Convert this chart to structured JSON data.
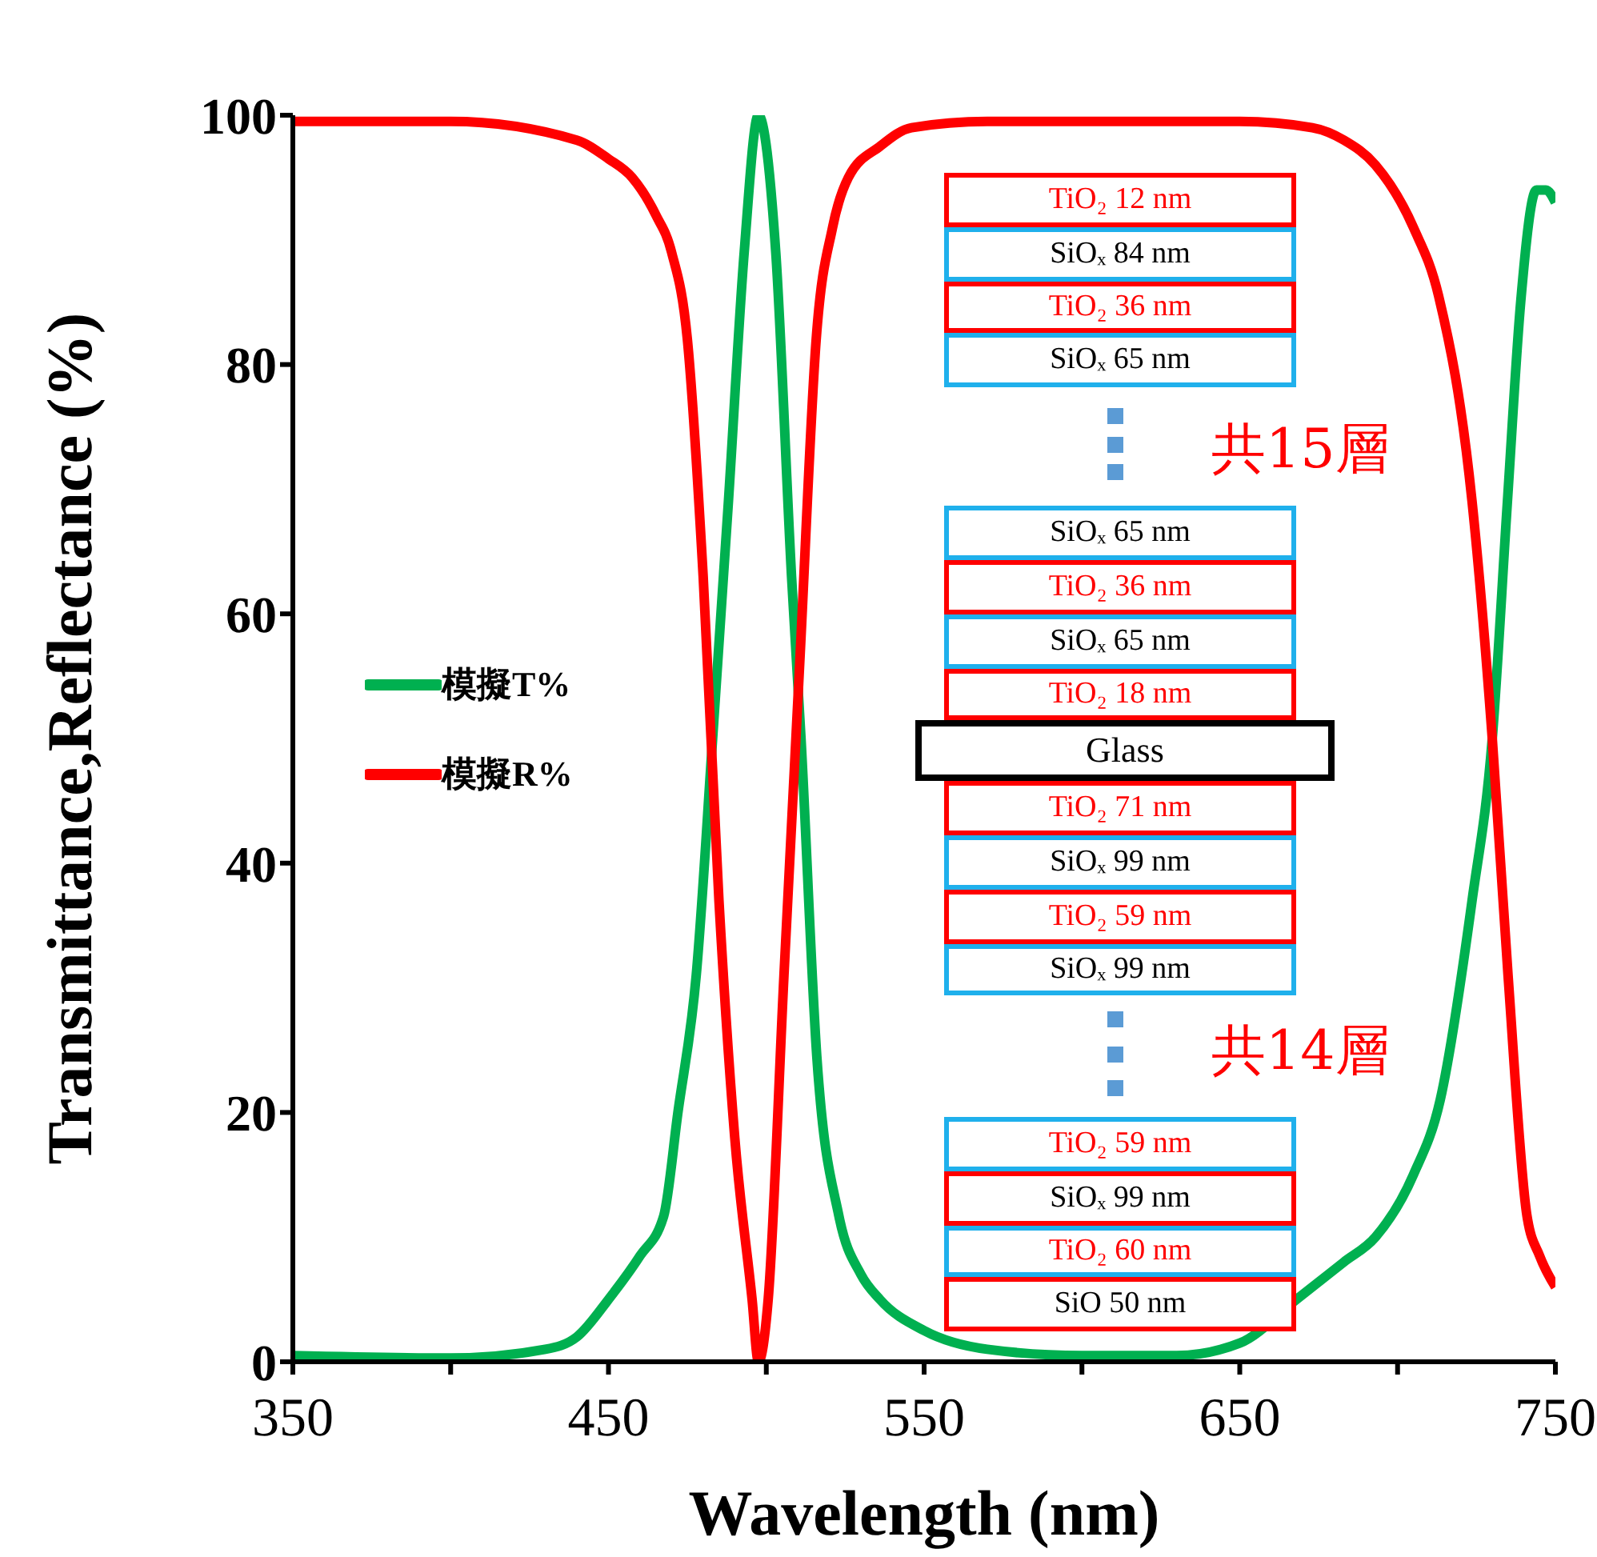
{
  "chart_data": {
    "type": "line",
    "xlabel": "Wavelength (nm)",
    "ylabel": "Transmittance,Reflectance (%)",
    "xlim": [
      350,
      750
    ],
    "xticks": [
      350,
      {
        "value": 400,
        "label": null
      },
      450,
      {
        "value": 500,
        "label": null
      },
      550,
      {
        "value": 600,
        "label": null
      },
      650,
      {
        "value": 700,
        "label": null
      },
      750
    ],
    "ylim": [
      0,
      100
    ],
    "yticks": [
      0,
      20,
      40,
      60,
      80,
      100
    ],
    "grid": false,
    "legend": "left",
    "marker": "none",
    "line_style": "solid",
    "series": [
      {
        "name": "模擬T%",
        "color": "#00b050",
        "x": [
          350,
          400,
          430,
          440,
          450,
          460,
          467.5,
          472,
          477.8,
          483,
          488,
          493,
          497.5,
          503,
          508,
          511,
          516,
          523,
          530,
          536,
          550,
          570,
          600,
          630,
          650,
          668,
          683,
          693,
          705,
          713.5,
          723.6,
          730,
          734.8,
          739,
          744,
          747,
          750
        ],
        "values": [
          0.5,
          0.3,
          1,
          2,
          5,
          8.5,
          11.7,
          20,
          31,
          50,
          69,
          89,
          100,
          89,
          63,
          50,
          24.5,
          11.7,
          7,
          5,
          2.5,
          1,
          0.5,
          0.5,
          1.5,
          5,
          8,
          10,
          15,
          21,
          37,
          50,
          69,
          85,
          94,
          94,
          93
        ]
      },
      {
        "name": "模擬R%",
        "color": "#ff0000",
        "x": [
          350,
          400,
          440,
          450,
          457.5,
          465,
          470,
          475,
          480,
          485,
          490,
          495.5,
          497.5,
          500.6,
          505.6,
          510.7,
          515.8,
          521,
          526,
          536,
          546,
          570,
          650,
          673,
          683,
          693,
          705,
          713,
          723.6,
          730,
          735,
          741,
          745,
          750
        ],
        "values": [
          99.5,
          99.5,
          98,
          96.5,
          95,
          92,
          89,
          82,
          63,
          37,
          18,
          5,
          0,
          5,
          31,
          56.6,
          82,
          91,
          95,
          97.5,
          99,
          99.5,
          99.5,
          99,
          98,
          96,
          91,
          85.5,
          69,
          50,
          31,
          11.7,
          8.5,
          6
        ]
      }
    ],
    "annotations": [
      "TiO₂ 12 nm",
      "SiOₓ 84 nm",
      "TiO₂ 36 nm",
      "SiOₓ 65 nm",
      "共15層",
      "SiOₓ 65 nm",
      "TiO₂ 36 nm",
      "SiOₓ 65 nm",
      "TiO₂ 18 nm",
      "Glass",
      "TiO₂ 71 nm",
      "SiOₓ 99 nm",
      "TiO₂ 59 nm",
      "SiOₓ 99 nm",
      "共14層",
      "TiO₂ 59 nm",
      "SiOₓ 99 nm",
      "TiO₂ 60 nm",
      "SiO 50 nm"
    ]
  }
}
